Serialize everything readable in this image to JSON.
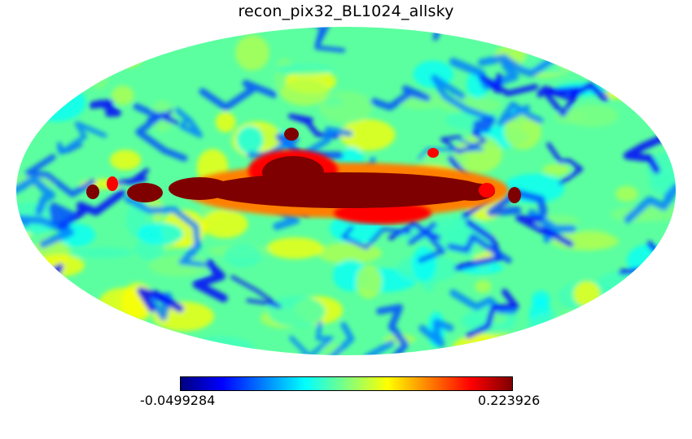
{
  "map": {
    "title": "recon_pix32_BL1024_allsky",
    "projection": "mollweide",
    "colormap": "jet",
    "colormap_stops": [
      "#00007f",
      "#0000ff",
      "#007fff",
      "#00ffff",
      "#7fff7f",
      "#ffff00",
      "#ff7f00",
      "#ff0000",
      "#7f0000"
    ]
  },
  "colorbar": {
    "min_label": "-0.0499284",
    "max_label": "0.223926",
    "min": -0.0499284,
    "max": 0.223926
  }
}
